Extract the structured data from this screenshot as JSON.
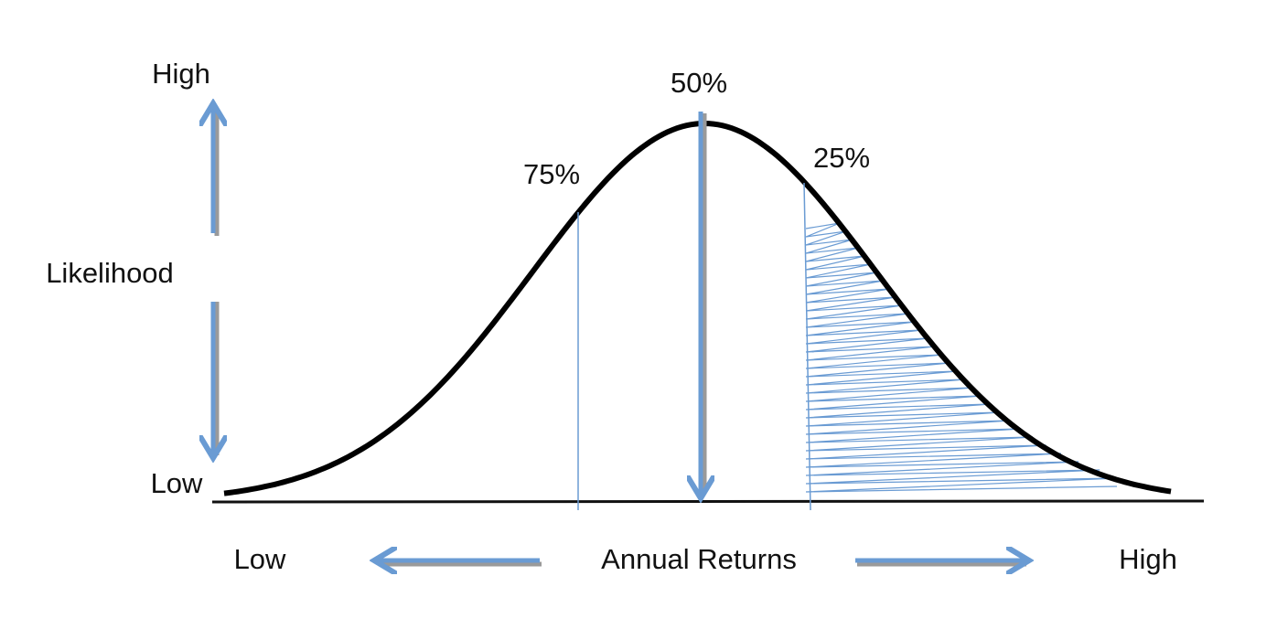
{
  "y_axis": {
    "high": "High",
    "label": "Likelihood",
    "low": "Low"
  },
  "x_axis": {
    "low": "Low",
    "label": "Annual Returns",
    "high": "High"
  },
  "markers": {
    "left": "75%",
    "center": "50%",
    "right": "25%"
  }
}
